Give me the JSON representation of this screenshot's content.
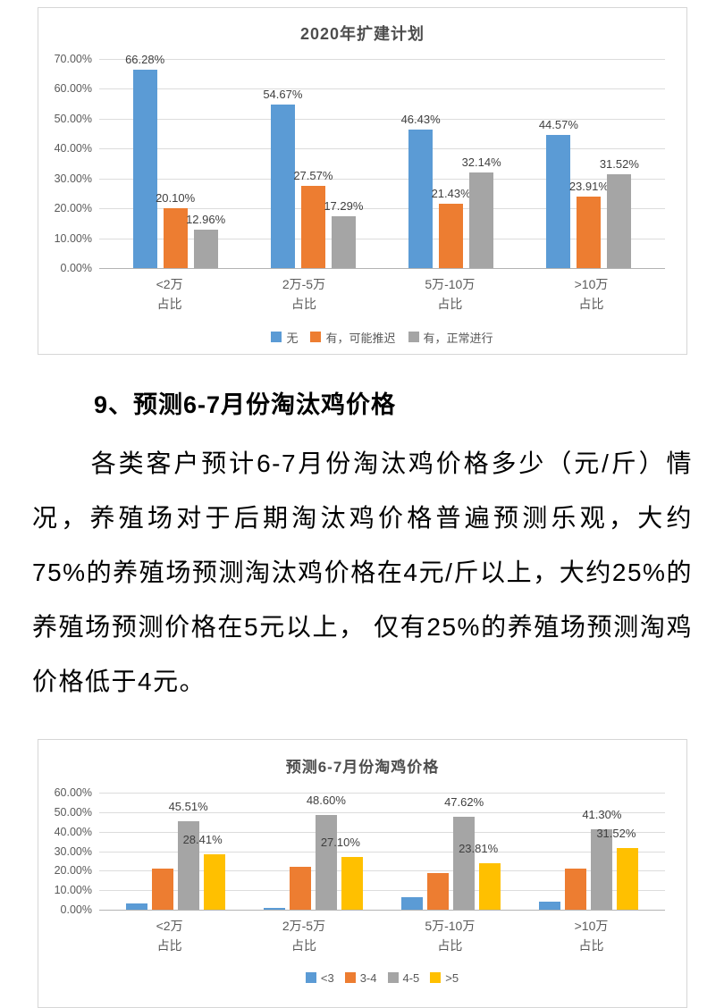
{
  "section": {
    "heading": "9、预测6-7月份淘汰鸡价格",
    "paragraph": "各类客户预计6-7月份淘汰鸡价格多少（元/斤）情况，养殖场对于后期淘汰鸡价格普遍预测乐观，大约75%的养殖场预测淘汰鸡价格在4元/斤以上，大约25%的养殖场预测价格在5元以上， 仅有25%的养殖场预测淘鸡价格低于4元。"
  },
  "colors": {
    "blue": "#5B9BD5",
    "orange": "#ED7D31",
    "gray": "#A5A5A5",
    "yellow": "#FFC000",
    "axis_text": "#595959",
    "gridline": "#dcdcdc"
  },
  "chart_data": [
    {
      "type": "bar",
      "title": "2020年扩建计划",
      "categories": [
        "<2万",
        "2万-5万",
        "5万-10万",
        ">10万"
      ],
      "category_sub": "占比",
      "xlabel": "",
      "ylabel": "",
      "ylim": [
        0,
        70
      ],
      "grid": true,
      "legend_position": "bottom",
      "yticks": [
        "70.00%",
        "60.00%",
        "50.00%",
        "40.00%",
        "30.00%",
        "20.00%",
        "10.00%",
        "0.00%"
      ],
      "series": [
        {
          "name": "无",
          "color": "#5B9BD5",
          "values": [
            66.28,
            54.67,
            46.43,
            44.57
          ],
          "data_labels": true
        },
        {
          "name": "有，可能推迟",
          "color": "#ED7D31",
          "values": [
            20.1,
            27.57,
            21.43,
            23.91
          ],
          "data_labels": true
        },
        {
          "name": "有，正常进行",
          "color": "#A5A5A5",
          "values": [
            12.96,
            17.29,
            32.14,
            31.52
          ],
          "data_labels": true
        }
      ]
    },
    {
      "type": "bar",
      "title": "预测6-7月份淘鸡价格",
      "categories": [
        "<2万",
        "2万-5万",
        "5万-10万",
        ">10万"
      ],
      "category_sub": "占比",
      "xlabel": "",
      "ylabel": "",
      "ylim": [
        0,
        60
      ],
      "grid": true,
      "legend_position": "bottom",
      "yticks": [
        "60.00%",
        "50.00%",
        "40.00%",
        "30.00%",
        "20.00%",
        "10.00%",
        "0.00%"
      ],
      "series": [
        {
          "name": "<3",
          "color": "#5B9BD5",
          "values": [
            3.0,
            0.7,
            6.6,
            4.3
          ],
          "data_labels": false
        },
        {
          "name": "3-4",
          "color": "#ED7D31",
          "values": [
            21.0,
            22.2,
            18.6,
            21.0
          ],
          "data_labels": false
        },
        {
          "name": "4-5",
          "color": "#A5A5A5",
          "values": [
            45.51,
            48.6,
            47.62,
            41.3
          ],
          "data_labels": true
        },
        {
          "name": ">5",
          "color": "#FFC000",
          "values": [
            28.41,
            27.1,
            23.81,
            31.52
          ],
          "data_labels": true
        }
      ]
    }
  ]
}
